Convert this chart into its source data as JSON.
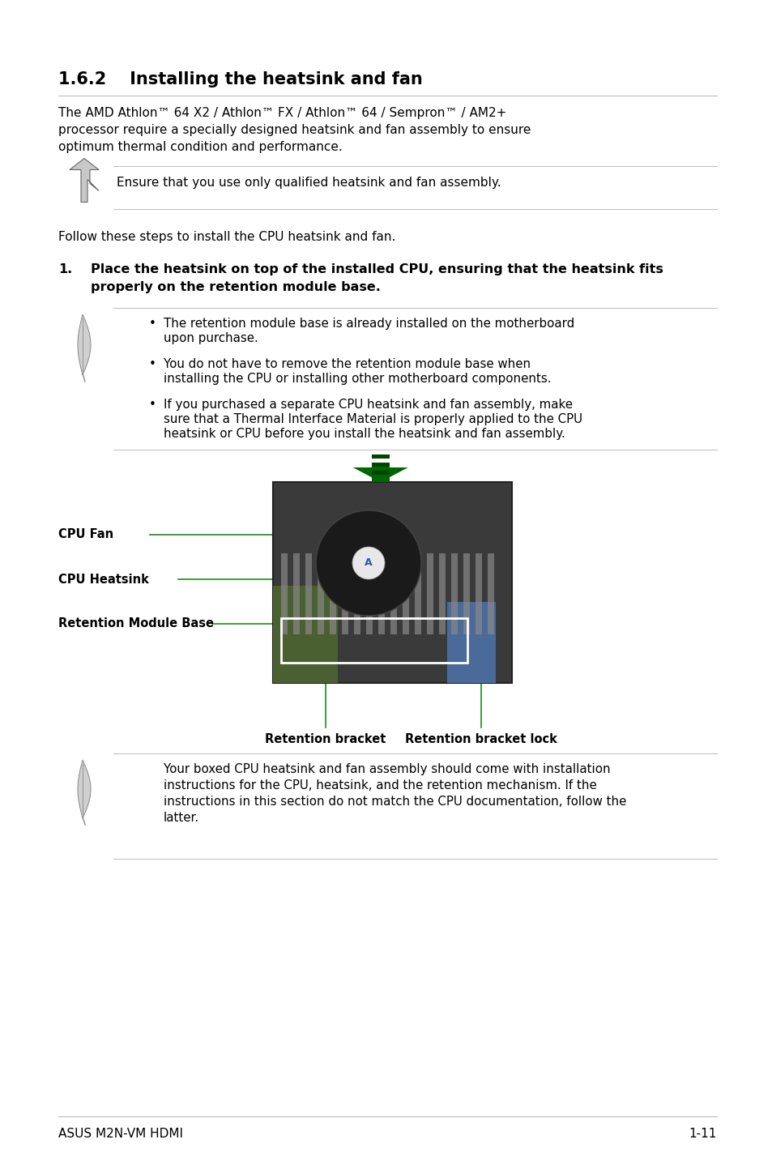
{
  "bg_color": "#ffffff",
  "section_number": "1.6.2",
  "section_title": "    Installing the heatsink and fan",
  "intro_line1": "The AMD Athlon™ 64 X2 / Athlon™ FX / Athlon™ 64 / Sempron™ / AM2+",
  "intro_line2": "processor require a specially designed heatsink and fan assembly to ensure",
  "intro_line3": "optimum thermal condition and performance.",
  "caution_text": "Ensure that you use only qualified heatsink and fan assembly.",
  "follow_text": "Follow these steps to install the CPU heatsink and fan.",
  "step1_num": "1.",
  "step1_line1": "Place the heatsink on top of the installed CPU, ensuring that the heatsink fits",
  "step1_line2": "properly on the retention module base.",
  "note_bullet1_line1": "The retention module base is already installed on the motherboard",
  "note_bullet1_line2": "upon purchase.",
  "note_bullet2_line1": "You do not have to remove the retention module base when",
  "note_bullet2_line2": "installing the CPU or installing other motherboard components.",
  "note_bullet3_line1": "If you purchased a separate CPU heatsink and fan assembly, make",
  "note_bullet3_line2": "sure that a Thermal Interface Material is properly applied to the CPU",
  "note_bullet3_line3": "heatsink or CPU before you install the heatsink and fan assembly.",
  "cpu_fan_label": "CPU Fan",
  "cpu_heatsink_label": "CPU Heatsink",
  "retention_module_label": "Retention Module Base",
  "retention_bracket_label": "Retention bracket",
  "retention_bracket_lock_label": "Retention bracket lock",
  "final_note_line1": "Your boxed CPU heatsink and fan assembly should come with installation",
  "final_note_line2": "instructions for the CPU, heatsink, and the retention mechanism. If the",
  "final_note_line3": "instructions in this section do not match the CPU documentation, follow the",
  "final_note_line4": "latter.",
  "footer_left": "ASUS M2N-VM HDMI",
  "footer_right": "1-11",
  "line_color": "#bbbbbb",
  "green_color": "#006600",
  "label_line_color": "#228822",
  "text_color": "#000000"
}
